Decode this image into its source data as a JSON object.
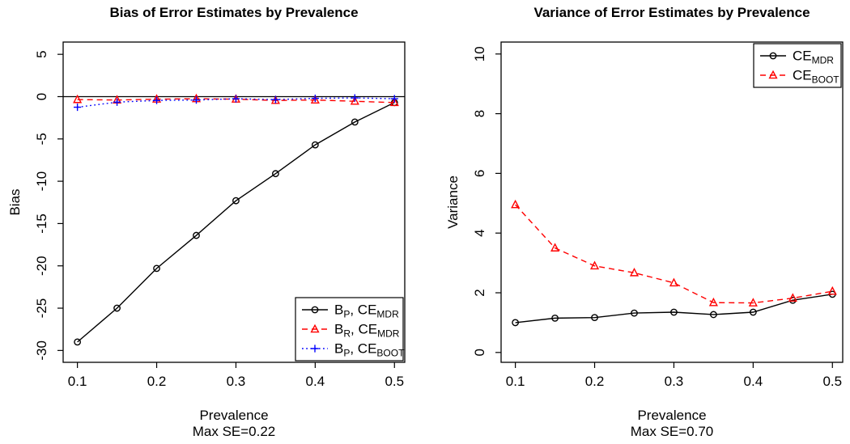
{
  "page": {
    "background": "#ffffff",
    "foreground": "#000000"
  },
  "chart_data": [
    {
      "type": "line",
      "panel": "bias",
      "title": "Bias of Error Estimates by Prevalence",
      "xlabel": "Prevalence",
      "xlabel_note": "Max SE=0.22",
      "ylabel": "Bias",
      "x": [
        0.1,
        0.15,
        0.2,
        0.25,
        0.3,
        0.35,
        0.4,
        0.45,
        0.5
      ],
      "xticks": [
        0.1,
        0.2,
        0.3,
        0.4,
        0.5
      ],
      "yticks": [
        5,
        0,
        -5,
        -10,
        -15,
        -20,
        -25,
        -30
      ],
      "xlim": [
        0.082,
        0.513
      ],
      "ylim": [
        -31.4,
        6.45
      ],
      "hline": 0,
      "grid": false,
      "legend_position": "bottomright",
      "series": [
        {
          "name": "B_P, CE_MDR",
          "name_parts": [
            [
              "B",
              "P"
            ],
            [
              ", CE",
              "MDR"
            ]
          ],
          "color": "#000000",
          "marker": "circle",
          "line": "solid",
          "values": [
            -29.0,
            -25.0,
            -20.3,
            -16.4,
            -12.3,
            -9.1,
            -5.7,
            -3.0,
            -0.7
          ]
        },
        {
          "name": "B_R, CE_MDR",
          "name_parts": [
            [
              "B",
              "R"
            ],
            [
              ", CE",
              "MDR"
            ]
          ],
          "color": "#ff0000",
          "marker": "triangle",
          "line": "dashed",
          "values": [
            -0.35,
            -0.4,
            -0.3,
            -0.25,
            -0.3,
            -0.45,
            -0.4,
            -0.55,
            -0.7
          ]
        },
        {
          "name": "B_P, CE_BOOT",
          "name_parts": [
            [
              "B",
              "P"
            ],
            [
              ", CE",
              "BOOT"
            ]
          ],
          "color": "#0000ff",
          "marker": "plus",
          "line": "dotted",
          "values": [
            -1.25,
            -0.65,
            -0.45,
            -0.4,
            -0.25,
            -0.35,
            -0.2,
            -0.15,
            -0.25
          ]
        }
      ]
    },
    {
      "type": "line",
      "panel": "variance",
      "title": "Variance of Error Estimates by Prevalence",
      "xlabel": "Prevalence",
      "xlabel_note": "Max SE=0.70",
      "ylabel": "Variance",
      "x": [
        0.1,
        0.15,
        0.2,
        0.25,
        0.3,
        0.35,
        0.4,
        0.45,
        0.5
      ],
      "xticks": [
        0.1,
        0.2,
        0.3,
        0.4,
        0.5
      ],
      "yticks": [
        10,
        8,
        6,
        4,
        2,
        0
      ],
      "xlim": [
        0.082,
        0.513
      ],
      "ylim": [
        -0.33,
        10.4
      ],
      "hline": null,
      "grid": false,
      "legend_position": "topright",
      "series": [
        {
          "name": "CE_MDR",
          "name_parts": [
            [
              "CE",
              "MDR"
            ]
          ],
          "color": "#000000",
          "marker": "circle",
          "line": "solid",
          "values": [
            1.0,
            1.15,
            1.17,
            1.32,
            1.35,
            1.27,
            1.35,
            1.75,
            1.95
          ]
        },
        {
          "name": "CE_BOOT",
          "name_parts": [
            [
              "CE",
              "BOOT"
            ]
          ],
          "color": "#ff0000",
          "marker": "triangle",
          "line": "dashed",
          "values": [
            4.95,
            3.5,
            2.9,
            2.67,
            2.33,
            1.67,
            1.66,
            1.82,
            2.05
          ]
        }
      ]
    }
  ]
}
